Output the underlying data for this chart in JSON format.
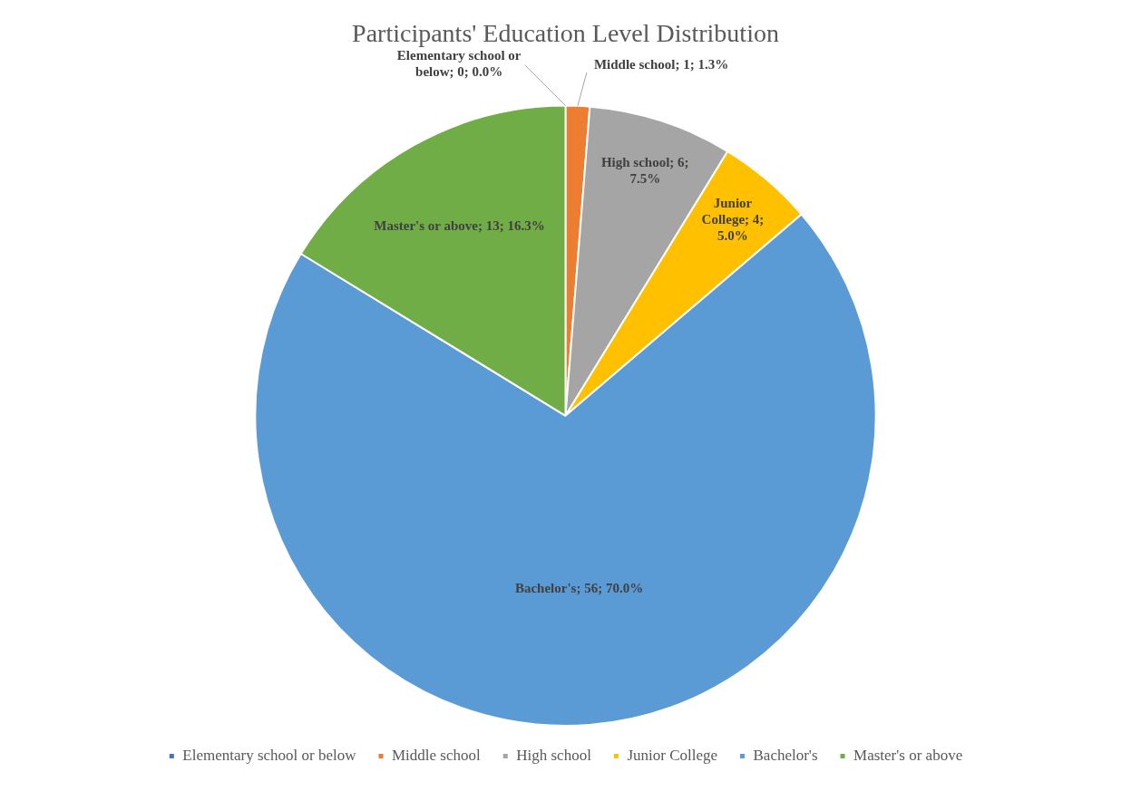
{
  "chart_data": {
    "type": "pie",
    "title": "Participants' Education Level Distribution",
    "categories": [
      "Elementary school or below",
      "Middle school",
      "High school",
      "Junior College",
      "Bachelor's",
      "Master's or above"
    ],
    "values": [
      0,
      1,
      6,
      4,
      56,
      13
    ],
    "colors": [
      "#4472c4",
      "#ed7d31",
      "#a5a5a5",
      "#ffc000",
      "#5b9bd5",
      "#70ad47"
    ],
    "value_labels": [
      "Elementary school or below; 0; 0.0%",
      "Middle school; 1; 1.3%",
      "High school; 6; 7.5%",
      "Junior College; 4; 5.0%",
      "Bachelor's; 56; 70.0%",
      "Master's or above; 13; 16.3%"
    ],
    "legend": "bottom"
  }
}
